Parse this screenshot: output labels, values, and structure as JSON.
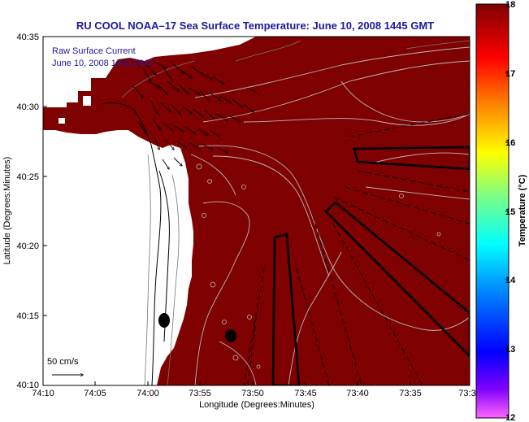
{
  "title": "RU COOL  NOAA–17  Sea Surface Temperature:  June 10, 2008 1445 GMT",
  "legend": {
    "line1": "Raw Surface Current",
    "line2": "June 10, 2008 1400 GMT"
  },
  "xlabel": "Longitude (Degrees:Minutes)",
  "ylabel": "Latitude (Degrees:Minutes)",
  "x_ticks": [
    "74:10",
    "74:05",
    "74:00",
    "73:55",
    "73:50",
    "73:45",
    "73:40",
    "73:35",
    "73:3"
  ],
  "y_ticks": [
    "40:35",
    "40:30",
    "40:25",
    "40:20",
    "40:15",
    "40:10"
  ],
  "scale_label": "50 cm/s",
  "colorbar": {
    "label": "Temperature (°C)",
    "ticks": [
      "18",
      "17",
      "16",
      "15",
      "14",
      "13",
      "12"
    ],
    "min": 12,
    "max": 18
  },
  "colors": {
    "sea": "#7f0000",
    "land": "#ffffff",
    "title": "#1a1a9c"
  }
}
